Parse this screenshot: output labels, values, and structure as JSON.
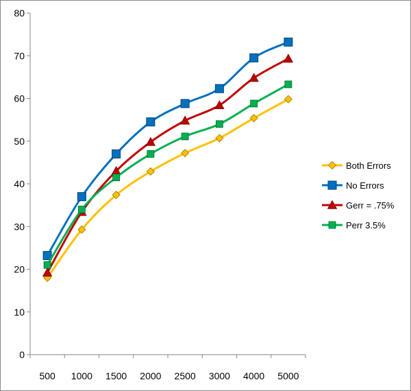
{
  "chart_data": {
    "type": "line",
    "title": "",
    "xlabel": "",
    "ylabel": "",
    "categories": [
      "500",
      "1000",
      "1500",
      "2000",
      "2500",
      "3000",
      "4000",
      "5000"
    ],
    "ylim": [
      0,
      80
    ],
    "y_ticks": [
      "0",
      "10",
      "20",
      "30",
      "40",
      "50",
      "60",
      "70",
      "80"
    ],
    "grid": false,
    "smooth": true,
    "legend": "right",
    "series": [
      {
        "name": "Both Errors",
        "color": "#FFC000",
        "marker": "diamond",
        "values": [
          18.0,
          29.3,
          37.4,
          42.9,
          47.2,
          50.7,
          55.4,
          59.8
        ]
      },
      {
        "name": "No Errors",
        "color": "#0070C0",
        "marker": "square",
        "values": [
          23.2,
          37.0,
          47.0,
          54.5,
          58.8,
          62.3,
          69.5,
          73.2
        ]
      },
      {
        "name": "Gerr = .75%",
        "color": "#C00000",
        "marker": "triangle",
        "values": [
          19.2,
          33.4,
          43.0,
          49.8,
          54.8,
          58.4,
          64.8,
          69.3
        ]
      },
      {
        "name": "Perr 3.5%",
        "color": "#00B050",
        "marker": "square-small",
        "values": [
          21.0,
          34.0,
          41.5,
          47.0,
          51.1,
          54.0,
          58.8,
          63.3
        ]
      }
    ]
  }
}
